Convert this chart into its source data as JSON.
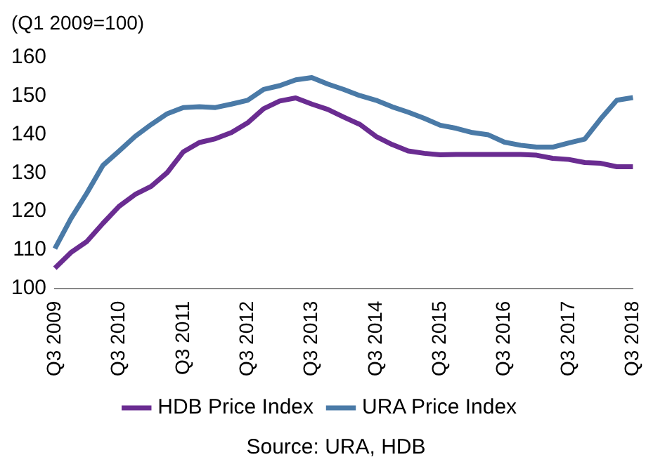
{
  "chart_data": {
    "type": "line",
    "ylabel": "(Q1 2009=100)",
    "categories": [
      "Q3 2009",
      null,
      null,
      null,
      "Q3 2010",
      null,
      null,
      null,
      "Q3 2011",
      null,
      null,
      null,
      "Q3 2012",
      null,
      null,
      null,
      "Q3 2013",
      null,
      null,
      null,
      "Q3 2014",
      null,
      null,
      null,
      "Q3 2015",
      null,
      null,
      null,
      "Q3 2016",
      null,
      null,
      null,
      "Q3 2017",
      null,
      null,
      null,
      "Q3 2018"
    ],
    "series": [
      {
        "name": "HDB Price Index",
        "color": "#6a2c91",
        "values": [
          105.2,
          109.3,
          112.2,
          116.9,
          121.3,
          124.4,
          126.5,
          130.1,
          135.5,
          137.9,
          138.9,
          140.5,
          143,
          146.7,
          148.7,
          149.5,
          147.9,
          146.5,
          144.5,
          142.6,
          139.5,
          137.4,
          135.7,
          135.1,
          134.7,
          134.8,
          134.8,
          134.8,
          134.8,
          134.8,
          134.6,
          133.8,
          133.5,
          132.7,
          132.5,
          131.6,
          131.6
        ]
      },
      {
        "name": "URA Price Index",
        "color": "#4a7aa7",
        "values": [
          110.3,
          118.1,
          124.8,
          132,
          135.7,
          139.5,
          142.6,
          145.4,
          147,
          147.2,
          147,
          147.9,
          148.9,
          151.7,
          152.7,
          154.2,
          154.8,
          153.1,
          151.7,
          150.1,
          148.9,
          147.2,
          145.8,
          144.2,
          142.4,
          141.6,
          140.5,
          139.9,
          138,
          137.2,
          136.7,
          136.7,
          137.8,
          138.8,
          144.1,
          148.9,
          149.6
        ]
      }
    ],
    "ylim": [
      100,
      160
    ],
    "yticks": [
      100,
      110,
      120,
      130,
      140,
      150,
      160
    ],
    "grid": false,
    "legend": "bottom",
    "marker": "none",
    "line_style": "solid",
    "annotations": [
      "Source: URA, HDB"
    ]
  }
}
